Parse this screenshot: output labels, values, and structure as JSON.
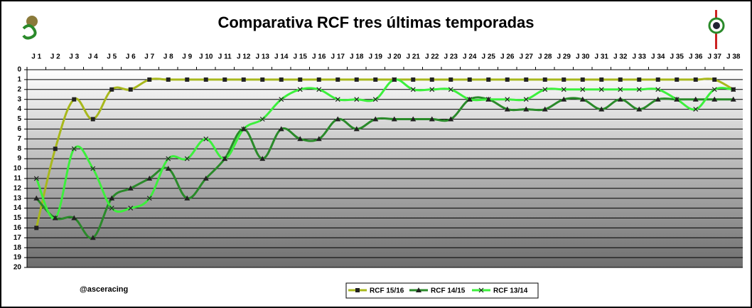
{
  "chart_data": {
    "type": "line",
    "title": "Comparativa RCF tres últimas temporadas",
    "note": "@asceracing",
    "categories": [
      "J 1",
      "J 2",
      "J 3",
      "J 4",
      "J 5",
      "J 6",
      "J 7",
      "J 8",
      "J 9",
      "J 10",
      "J 11",
      "J 12",
      "J 13",
      "J 14",
      "J 15",
      "J 16",
      "J 17",
      "J 18",
      "J 19",
      "J 20",
      "J 21",
      "J 22",
      "J 23",
      "J 24",
      "J 25",
      "J 26",
      "J 27",
      "J 28",
      "J 29",
      "J 30",
      "J 31",
      "J 32",
      "J 33",
      "J 34",
      "J 35",
      "J 36",
      "J 37",
      "J 38"
    ],
    "ylim": [
      0,
      20
    ],
    "y_inverted": true,
    "yticks": [
      0,
      1,
      2,
      3,
      4,
      5,
      6,
      7,
      8,
      9,
      10,
      11,
      12,
      13,
      14,
      15,
      16,
      17,
      18,
      19,
      20
    ],
    "grid": true,
    "series": [
      {
        "name": "RCF 15/16",
        "color": "#a8b81c",
        "marker": "square",
        "values": [
          16,
          8,
          3,
          5,
          2,
          2,
          1,
          1,
          1,
          1,
          1,
          1,
          1,
          1,
          1,
          1,
          1,
          1,
          1,
          1,
          1,
          1,
          1,
          1,
          1,
          1,
          1,
          1,
          1,
          1,
          1,
          1,
          1,
          1,
          1,
          1,
          1,
          2
        ]
      },
      {
        "name": "RCF 14/15",
        "color": "#2a8a2a",
        "marker": "triangle",
        "values": [
          13,
          15,
          15,
          17,
          13,
          12,
          11,
          10,
          13,
          11,
          9,
          6,
          9,
          6,
          7,
          7,
          5,
          6,
          5,
          5,
          5,
          5,
          5,
          3,
          3,
          4,
          4,
          4,
          3,
          3,
          4,
          3,
          4,
          3,
          3,
          3,
          3,
          3
        ]
      },
      {
        "name": "RCF 13/14",
        "color": "#3cf03c",
        "marker": "cross",
        "values": [
          11,
          15,
          8,
          10,
          14,
          14,
          13,
          9,
          9,
          7,
          9,
          6,
          5,
          3,
          2,
          2,
          3,
          3,
          3,
          1,
          2,
          2,
          2,
          3,
          3,
          3,
          3,
          2,
          2,
          2,
          2,
          2,
          2,
          2,
          3,
          4,
          2,
          2
        ]
      }
    ]
  }
}
